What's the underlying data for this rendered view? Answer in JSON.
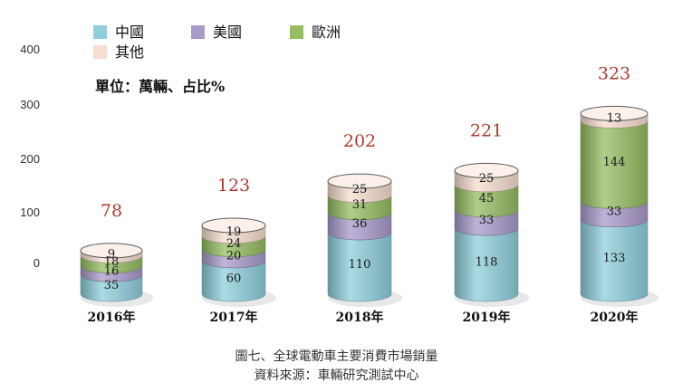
{
  "chart_data": {
    "type": "bar",
    "stacked": true,
    "style": "3d-cylinder",
    "unit_note": "單位：萬輛、占比%",
    "categories": [
      "2016年",
      "2017年",
      "2018年",
      "2019年",
      "2020年"
    ],
    "series": [
      {
        "name": "中國",
        "color": "#8fcfdc",
        "values": [
          35,
          60,
          110,
          118,
          133
        ]
      },
      {
        "name": "美國",
        "color": "#a99bcb",
        "values": [
          16,
          20,
          36,
          33,
          33
        ]
      },
      {
        "name": "歐洲",
        "color": "#96bd63",
        "values": [
          18,
          24,
          31,
          45,
          144
        ]
      },
      {
        "name": "其他",
        "color": "#f7ded0",
        "values": [
          9,
          19,
          25,
          25,
          13
        ]
      }
    ],
    "totals": [
      78,
      123,
      202,
      221,
      323
    ],
    "y_ticks": [
      0,
      100,
      200,
      300,
      400
    ],
    "ylim": [
      0,
      400
    ],
    "total_label_color": "#b03a2e",
    "legend_position": "top-left",
    "grid": false
  },
  "captions": {
    "line1": "圖七、全球電動車主要消費市場銷量",
    "line2": "資料來源：車輛研究測試中心"
  }
}
